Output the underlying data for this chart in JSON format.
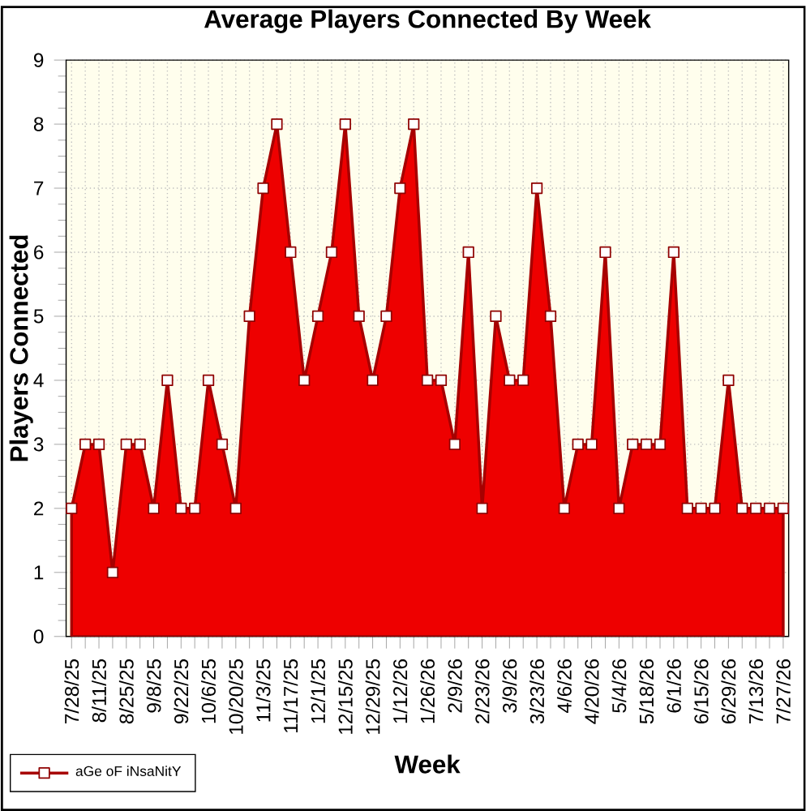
{
  "chart_data": {
    "type": "area",
    "title": "Average Players Connected By Week",
    "xlabel": "Week",
    "ylabel": "Players Connected",
    "categories": [
      "7/28/25",
      null,
      "8/11/25",
      null,
      "8/25/25",
      null,
      "9/8/25",
      null,
      "9/22/25",
      null,
      "10/6/25",
      null,
      "10/20/25",
      null,
      "11/3/25",
      null,
      "11/17/25",
      null,
      "12/1/25",
      null,
      "12/15/25",
      null,
      "12/29/25",
      null,
      "1/12/26",
      null,
      "1/26/26",
      null,
      "2/9/26",
      null,
      "2/23/26",
      null,
      "3/9/26",
      null,
      "3/23/26",
      null,
      "4/6/26",
      null,
      "4/20/26",
      null,
      "5/4/26",
      null,
      "5/18/26",
      null,
      "6/1/26",
      null,
      "6/15/26",
      null,
      "6/29/26",
      null,
      "7/13/26",
      null,
      "7/27/26"
    ],
    "series": [
      {
        "name": "aGe oF iNsaNitY",
        "color": "#ee0000",
        "values": [
          2,
          3,
          3,
          1,
          3,
          3,
          2,
          4,
          2,
          2,
          4,
          3,
          2,
          5,
          7,
          8,
          6,
          4,
          5,
          6,
          8,
          5,
          4,
          5,
          7,
          8,
          4,
          4,
          3,
          6,
          2,
          5,
          4,
          4,
          7,
          5,
          2,
          3,
          3,
          6,
          2,
          3,
          3,
          3,
          6,
          2,
          2,
          2,
          4,
          2,
          2,
          2,
          2
        ]
      }
    ],
    "ylim": [
      0,
      9
    ],
    "yticks": [
      0,
      1,
      2,
      3,
      4,
      5,
      6,
      7,
      8,
      9
    ],
    "grid": true,
    "legend": "bottom left",
    "marker": "square"
  }
}
